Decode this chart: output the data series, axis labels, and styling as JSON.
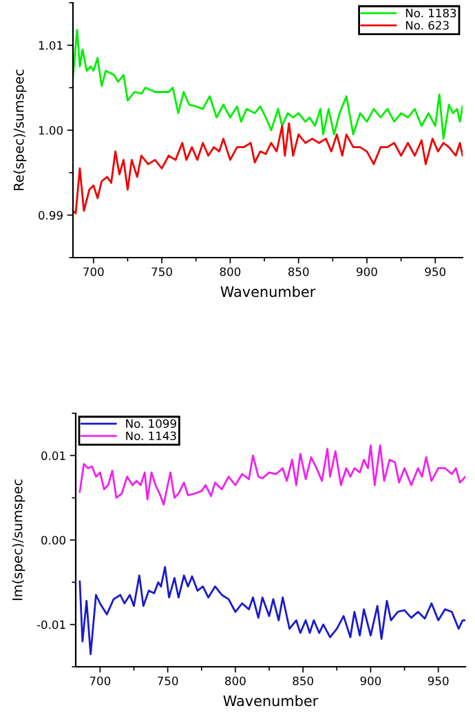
{
  "chart_data": [
    {
      "type": "line",
      "xlabel": "Wavenumber",
      "ylabel": "Re(spec)/sumspec",
      "xlim": [
        685,
        970
      ],
      "ylim": [
        0.985,
        1.015
      ],
      "xticks": [
        700,
        750,
        800,
        850,
        900,
        950
      ],
      "yticks": [
        {
          "value": 0.99,
          "label": "0.99"
        },
        {
          "value": 1.0,
          "label": "1.00"
        },
        {
          "value": 1.01,
          "label": "1.01"
        }
      ],
      "grid": false,
      "legend": "top right",
      "series": [
        {
          "name": "No. 1183",
          "color": "#00ee00",
          "x": [
            685,
            688,
            690,
            692,
            695,
            698,
            700,
            703,
            706,
            709,
            715,
            718,
            722,
            725,
            730,
            735,
            738,
            745,
            750,
            755,
            758,
            762,
            766,
            770,
            775,
            780,
            785,
            790,
            795,
            800,
            805,
            808,
            812,
            818,
            822,
            826,
            830,
            835,
            838,
            842,
            846,
            850,
            855,
            858,
            862,
            866,
            868,
            872,
            876,
            880,
            885,
            890,
            895,
            900,
            905,
            910,
            915,
            920,
            925,
            930,
            935,
            940,
            945,
            950,
            953,
            956,
            960,
            963,
            966,
            968,
            970
          ],
          "values": [
            1.0063,
            1.0118,
            1.0075,
            1.0095,
            1.007,
            1.0075,
            1.007,
            1.0085,
            1.0052,
            1.007,
            1.0065,
            1.0057,
            1.0065,
            1.0035,
            1.0045,
            1.0043,
            1.005,
            1.0045,
            1.0045,
            1.0045,
            1.005,
            1.002,
            1.0045,
            1.003,
            1.0028,
            1.0025,
            1.004,
            1.0015,
            1.003,
            1.0015,
            1.0028,
            1.001,
            1.0025,
            1.002,
            1.0028,
            1.0015,
            1.0,
            1.0025,
            1.0005,
            1.002,
            1.0015,
            1.002,
            1.001,
            1.0015,
            1.0005,
            1.0025,
            0.9995,
            1.0025,
            0.9995,
            1.002,
            1.004,
            0.9995,
            1.002,
            1.001,
            1.0025,
            1.0015,
            1.0025,
            1.001,
            1.002,
            1.0015,
            1.0025,
            1.0005,
            1.002,
            1.0005,
            1.0042,
            0.999,
            1.003,
            1.002,
            1.0025,
            1.001,
            1.0028
          ]
        },
        {
          "name": "No. 623",
          "color": "#ee0000",
          "x": [
            685,
            687,
            690,
            693,
            697,
            700,
            703,
            706,
            710,
            713,
            716,
            719,
            722,
            725,
            728,
            732,
            735,
            740,
            745,
            750,
            755,
            760,
            765,
            768,
            772,
            776,
            780,
            784,
            788,
            792,
            795,
            800,
            805,
            810,
            815,
            818,
            822,
            826,
            830,
            834,
            838,
            840,
            843,
            846,
            850,
            855,
            860,
            865,
            870,
            874,
            878,
            882,
            885,
            890,
            895,
            900,
            905,
            910,
            915,
            920,
            925,
            930,
            935,
            940,
            943,
            948,
            952,
            956,
            960,
            965,
            968,
            970
          ],
          "values": [
            0.9905,
            0.9902,
            0.9955,
            0.9905,
            0.993,
            0.9935,
            0.992,
            0.994,
            0.9945,
            0.9938,
            0.9975,
            0.9948,
            0.9965,
            0.993,
            0.9965,
            0.9945,
            0.997,
            0.996,
            0.9965,
            0.9955,
            0.997,
            0.9965,
            0.9985,
            0.9965,
            0.998,
            0.9965,
            0.9985,
            0.997,
            0.998,
            0.9975,
            0.999,
            0.9965,
            0.998,
            0.998,
            0.9985,
            0.9962,
            0.9975,
            0.9972,
            0.9985,
            0.9975,
            1.0005,
            0.997,
            1.0008,
            0.997,
            0.9995,
            0.9985,
            0.999,
            0.9985,
            0.999,
            0.9975,
            0.9995,
            0.997,
            0.9995,
            0.998,
            0.998,
            0.9975,
            0.996,
            0.998,
            0.998,
            0.9985,
            0.997,
            0.9985,
            0.997,
            0.9988,
            0.996,
            0.999,
            0.9975,
            0.9985,
            0.998,
            0.997,
            0.9985,
            0.997
          ]
        }
      ]
    },
    {
      "type": "line",
      "xlabel": "Wavenumber",
      "ylabel": "Im(spec)/sumspec",
      "xlim": [
        682,
        970
      ],
      "ylim": [
        -0.015,
        0.015
      ],
      "xticks": [
        700,
        750,
        800,
        850,
        900,
        950
      ],
      "yticks": [
        {
          "value": -0.01,
          "label": "-0.01"
        },
        {
          "value": 0.0,
          "label": "0.00"
        },
        {
          "value": 0.01,
          "label": "0.01"
        }
      ],
      "grid": false,
      "legend": "top left",
      "series": [
        {
          "name": "No. 1099",
          "color": "#1a1acc",
          "x": [
            685,
            687,
            690,
            693,
            697,
            700,
            705,
            710,
            715,
            718,
            722,
            725,
            729,
            732,
            736,
            740,
            743,
            745,
            748,
            751,
            755,
            758,
            762,
            765,
            768,
            772,
            776,
            780,
            785,
            790,
            795,
            800,
            805,
            810,
            813,
            817,
            820,
            825,
            828,
            832,
            835,
            840,
            845,
            848,
            852,
            855,
            858,
            862,
            865,
            870,
            875,
            880,
            885,
            888,
            892,
            895,
            900,
            905,
            908,
            912,
            915,
            920,
            925,
            930,
            935,
            940,
            945,
            950,
            955,
            960,
            965,
            968,
            970
          ],
          "values": [
            -0.0049,
            -0.012,
            -0.0072,
            -0.0135,
            -0.0065,
            -0.0075,
            -0.0088,
            -0.007,
            -0.0065,
            -0.0075,
            -0.0065,
            -0.0078,
            -0.0042,
            -0.0078,
            -0.006,
            -0.0063,
            -0.005,
            -0.0055,
            -0.0032,
            -0.0068,
            -0.0045,
            -0.0068,
            -0.0042,
            -0.0055,
            -0.0043,
            -0.006,
            -0.0055,
            -0.0068,
            -0.0055,
            -0.0065,
            -0.007,
            -0.0085,
            -0.0075,
            -0.0082,
            -0.0068,
            -0.0092,
            -0.0068,
            -0.009,
            -0.007,
            -0.0095,
            -0.0068,
            -0.0105,
            -0.0095,
            -0.011,
            -0.0095,
            -0.011,
            -0.0095,
            -0.011,
            -0.01,
            -0.0115,
            -0.0105,
            -0.009,
            -0.0115,
            -0.0085,
            -0.0113,
            -0.0082,
            -0.0113,
            -0.0078,
            -0.0117,
            -0.0072,
            -0.0095,
            -0.0085,
            -0.0083,
            -0.0092,
            -0.0085,
            -0.0093,
            -0.0075,
            -0.0095,
            -0.0082,
            -0.0085,
            -0.0105,
            -0.0095,
            -0.0095
          ]
        },
        {
          "name": "No. 1143",
          "color": "#ee22ee",
          "x": [
            685,
            688,
            691,
            694,
            697,
            700,
            703,
            706,
            709,
            712,
            716,
            720,
            724,
            727,
            730,
            733,
            735,
            738,
            741,
            744,
            747,
            750,
            752,
            755,
            758,
            762,
            765,
            770,
            775,
            778,
            782,
            785,
            790,
            795,
            800,
            805,
            810,
            813,
            817,
            820,
            825,
            830,
            835,
            838,
            842,
            845,
            848,
            852,
            856,
            860,
            864,
            868,
            870,
            874,
            878,
            882,
            885,
            888,
            892,
            895,
            898,
            900,
            903,
            907,
            910,
            914,
            918,
            921,
            925,
            930,
            935,
            938,
            941,
            945,
            950,
            955,
            960,
            963,
            966,
            970
          ],
          "values": [
            0.0057,
            0.009,
            0.0085,
            0.0087,
            0.0075,
            0.008,
            0.006,
            0.0065,
            0.0082,
            0.005,
            0.0055,
            0.0075,
            0.0065,
            0.007,
            0.0065,
            0.008,
            0.0048,
            0.008,
            0.0065,
            0.0055,
            0.0042,
            0.0065,
            0.008,
            0.005,
            0.0055,
            0.0068,
            0.0053,
            0.0055,
            0.0058,
            0.0065,
            0.0052,
            0.0068,
            0.006,
            0.0075,
            0.0065,
            0.0078,
            0.0072,
            0.01,
            0.0075,
            0.0073,
            0.008,
            0.0078,
            0.0085,
            0.007,
            0.0095,
            0.0065,
            0.0102,
            0.0072,
            0.0098,
            0.0085,
            0.007,
            0.0108,
            0.0075,
            0.0105,
            0.0065,
            0.0085,
            0.0075,
            0.0085,
            0.008,
            0.0095,
            0.0085,
            0.0112,
            0.0065,
            0.0112,
            0.007,
            0.0095,
            0.0092,
            0.0068,
            0.0085,
            0.0065,
            0.0085,
            0.0075,
            0.0098,
            0.007,
            0.0085,
            0.0085,
            0.0078,
            0.0085,
            0.0068,
            0.0075
          ]
        }
      ]
    }
  ]
}
